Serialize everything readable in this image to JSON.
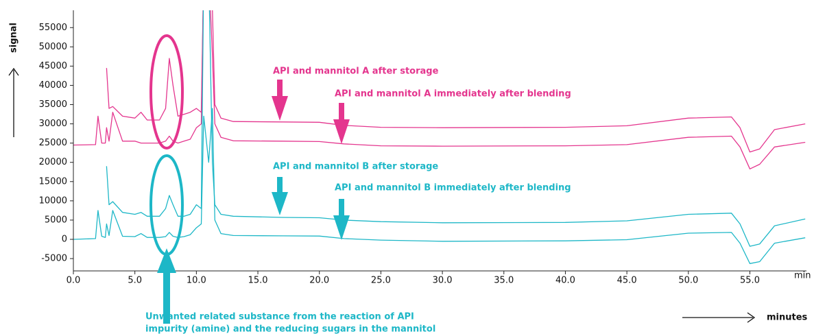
{
  "chart_data": {
    "type": "line",
    "x_label": "minutes",
    "y_label": "signal",
    "x_unit": "min",
    "annotations": [
      "API and mannitol A after storage",
      "API and mannitol A immediately after blending",
      "API and mannitol B after storage",
      "API and mannitol B immediately after blending"
    ],
    "note": [
      "Unwanted related substance from the reaction of API",
      "impurity (amine) and the reducing sugars in the mannitol"
    ],
    "x": [
      0,
      1.8,
      2.0,
      2.3,
      2.6,
      2.7,
      2.9,
      3.2,
      4.0,
      5.0,
      5.5,
      6.0,
      7.0,
      7.5,
      7.8,
      8.1,
      8.5,
      9.0,
      9.5,
      10.0,
      10.4,
      10.6,
      11.0,
      11.3,
      11.5,
      12,
      13,
      17,
      20,
      22,
      25,
      30,
      40,
      45,
      50,
      53.5,
      54.2,
      55,
      55.8,
      57,
      59.5
    ],
    "series": [
      {
        "name": "API and mannitol A after storage",
        "color": "#e4358e",
        "values": [
          null,
          null,
          null,
          null,
          null,
          44500,
          34000,
          34500,
          32000,
          31500,
          33000,
          31000,
          31000,
          34000,
          47000,
          40000,
          32000,
          32500,
          33000,
          34000,
          33000,
          70000,
          70000,
          60000,
          35000,
          31500,
          30600,
          30500,
          30400,
          29600,
          29100,
          29000,
          29100,
          29500,
          31500,
          31800,
          29000,
          22700,
          23500,
          28500,
          30000
        ]
      },
      {
        "name": "API and mannitol A immediately after blending",
        "color": "#e4358e",
        "values": [
          24500,
          24600,
          32000,
          25000,
          25000,
          29000,
          25500,
          33000,
          25500,
          25500,
          25000,
          25000,
          25000,
          25500,
          26800,
          25500,
          25000,
          25500,
          26000,
          29000,
          30000,
          70000,
          70000,
          48000,
          30000,
          26500,
          25600,
          25500,
          25400,
          24800,
          24300,
          24200,
          24300,
          24600,
          26500,
          26800,
          24000,
          18300,
          19500,
          24000,
          25200
        ]
      },
      {
        "name": "API and mannitol B after storage",
        "color": "#1db7c7",
        "values": [
          null,
          null,
          null,
          null,
          null,
          19000,
          9000,
          9800,
          7000,
          6500,
          7000,
          6000,
          6000,
          8000,
          11400,
          9000,
          6000,
          6000,
          6500,
          9000,
          8000,
          70000,
          70000,
          20000,
          9000,
          6500,
          6000,
          5700,
          5600,
          5000,
          4600,
          4300,
          4400,
          4800,
          6500,
          6800,
          4000,
          -1800,
          -1200,
          3500,
          5300
        ]
      },
      {
        "name": "API and mannitol B immediately after blending",
        "color": "#1db7c7",
        "values": [
          0,
          200,
          7500,
          800,
          500,
          4000,
          1000,
          7500,
          800,
          700,
          1500,
          500,
          500,
          700,
          1800,
          800,
          500,
          700,
          1200,
          3000,
          4000,
          32000,
          20000,
          34000,
          5000,
          1500,
          1000,
          900,
          850,
          200,
          -200,
          -500,
          -400,
          -100,
          1600,
          1800,
          -1000,
          -6300,
          -5800,
          -1000,
          400
        ]
      }
    ],
    "xlim": [
      0,
      59.6
    ],
    "ylim": [
      -8200,
      59500
    ],
    "xticks": [
      {
        "value": 0,
        "label": "0.0"
      },
      {
        "value": 5,
        "label": "5.0"
      },
      {
        "value": 10,
        "label": "10.0"
      },
      {
        "value": 15,
        "label": "15.0"
      },
      {
        "value": 20,
        "label": "20.0"
      },
      {
        "value": 25,
        "label": "25.0"
      },
      {
        "value": 30,
        "label": "30.0"
      },
      {
        "value": 35,
        "label": "35.0"
      },
      {
        "value": 40,
        "label": "40.0"
      },
      {
        "value": 45,
        "label": "45.0"
      },
      {
        "value": 50,
        "label": "50.0"
      },
      {
        "value": 55,
        "label": "55.0"
      }
    ],
    "yticks": [
      -5000,
      0,
      5000,
      10000,
      15000,
      20000,
      25000,
      30000,
      35000,
      40000,
      45000,
      50000,
      55000
    ],
    "grid": false
  }
}
